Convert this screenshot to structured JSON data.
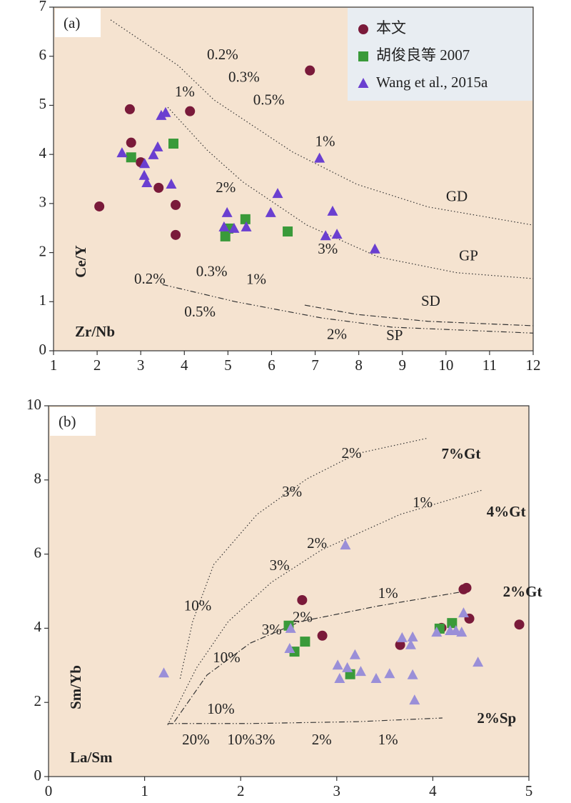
{
  "chart_data": [
    {
      "type": "scatter",
      "panel": "(a)",
      "xlabel": "Zr/Nb",
      "ylabel": "Ce/Y",
      "xlim": [
        1,
        12
      ],
      "ylim": [
        0,
        7
      ],
      "xticks": [
        1,
        2,
        3,
        4,
        5,
        6,
        7,
        8,
        9,
        10,
        11,
        12
      ],
      "yticks": [
        0,
        1,
        2,
        3,
        4,
        5,
        6,
        7
      ],
      "background": "#f5e3d0",
      "legend": "top-right",
      "series": [
        {
          "name": "本文",
          "marker": "circle",
          "color": "#7a1a3a",
          "x": [
            2.05,
            2.75,
            2.78,
            3.0,
            3.41,
            3.8,
            3.8,
            4.13,
            6.88
          ],
          "values": [
            2.94,
            4.92,
            4.24,
            3.84,
            3.32,
            2.97,
            2.36,
            4.88,
            5.71
          ]
        },
        {
          "name": "胡俊良等 2007",
          "marker": "square",
          "color": "#3a9a3a",
          "x": [
            2.78,
            3.75,
            5.01,
            4.94,
            5.4,
            6.37
          ],
          "values": [
            3.94,
            4.22,
            2.49,
            2.33,
            2.68,
            2.43
          ]
        },
        {
          "name": "Wang et al., 2015a",
          "marker": "triangle",
          "color": "#6a3fd0",
          "x": [
            2.57,
            3.09,
            3.08,
            3.14,
            3.29,
            3.39,
            3.47,
            3.57,
            3.7,
            4.98,
            4.91,
            5.14,
            5.42,
            5.98,
            6.14,
            7.1,
            7.4,
            7.24,
            7.5,
            8.37
          ],
          "values": [
            4.03,
            3.81,
            3.57,
            3.42,
            3.99,
            4.15,
            4.79,
            4.85,
            3.39,
            2.81,
            2.52,
            2.49,
            2.52,
            2.81,
            3.2,
            3.92,
            2.84,
            2.34,
            2.37,
            2.07
          ]
        }
      ],
      "curves": [
        {
          "style": "dotted",
          "x": [
            2.31,
            3.86,
            4.68,
            6.48,
            7.96,
            9.59,
            12
          ],
          "y": [
            6.74,
            5.81,
            5.11,
            4.05,
            3.39,
            2.93,
            2.56
          ]
        },
        {
          "style": "dotted",
          "x": [
            3.62,
            4.52,
            5.34,
            6.81,
            8.45,
            10.25,
            12
          ],
          "y": [
            4.96,
            4.09,
            3.44,
            2.56,
            1.91,
            1.59,
            1.47
          ]
        },
        {
          "style": "dash-dot",
          "x": [
            6.76,
            7.96,
            9.59,
            12
          ],
          "y": [
            0.93,
            0.74,
            0.6,
            0.51
          ]
        },
        {
          "style": "dash-dot-dot",
          "x": [
            3.5,
            5.17,
            7.14,
            8.77,
            12
          ],
          "y": [
            1.35,
            1.0,
            0.67,
            0.48,
            0.36
          ]
        }
      ],
      "annotations": [
        {
          "text": "0.2%",
          "x": 4.52,
          "y": 6.01
        },
        {
          "text": "0.3%",
          "x": 5.01,
          "y": 5.55
        },
        {
          "text": "0.5%",
          "x": 5.58,
          "y": 5.08
        },
        {
          "text": "1%",
          "x": 3.78,
          "y": 5.25
        },
        {
          "text": "1%",
          "x": 7.0,
          "y": 4.24
        },
        {
          "text": "2%",
          "x": 4.72,
          "y": 3.3
        },
        {
          "text": "3%",
          "x": 7.06,
          "y": 2.05
        },
        {
          "text": "0.2%",
          "x": 2.85,
          "y": 1.44
        },
        {
          "text": "0.3%",
          "x": 4.27,
          "y": 1.59
        },
        {
          "text": "1%",
          "x": 5.42,
          "y": 1.43
        },
        {
          "text": "0.5%",
          "x": 4.0,
          "y": 0.77
        },
        {
          "text": "2%",
          "x": 7.27,
          "y": 0.31
        },
        {
          "text": "GD",
          "x": 10.0,
          "y": 3.12
        },
        {
          "text": "GP",
          "x": 10.3,
          "y": 1.91
        },
        {
          "text": "SD",
          "x": 9.43,
          "y": 0.99
        },
        {
          "text": "SP",
          "x": 8.63,
          "y": 0.29
        }
      ]
    },
    {
      "type": "scatter",
      "panel": "(b)",
      "xlabel": "La/Sm",
      "ylabel": "Sm/Yb",
      "xlim": [
        0,
        5
      ],
      "ylim": [
        0,
        10
      ],
      "xticks": [
        0,
        1,
        2,
        3,
        4,
        5
      ],
      "yticks": [
        0,
        2,
        4,
        6,
        8,
        10
      ],
      "background": "#f5e3d0",
      "series": [
        {
          "marker": "circle",
          "color": "#7a1a3a",
          "x": [
            2.64,
            2.85,
            3.66,
            4.09,
            4.32,
            4.35,
            4.38,
            4.9
          ],
          "values": [
            4.76,
            3.8,
            3.55,
            4.01,
            5.05,
            5.09,
            4.26,
            4.1
          ]
        },
        {
          "marker": "square",
          "color": "#3a9a3a",
          "x": [
            2.5,
            2.56,
            2.67,
            3.14,
            4.07,
            4.2
          ],
          "values": [
            4.07,
            3.37,
            3.64,
            2.76,
            3.99,
            4.14
          ]
        },
        {
          "marker": "triangle",
          "color": "#9a8fd8",
          "x": [
            1.2,
            2.52,
            2.51,
            3.01,
            3.03,
            3.19,
            3.25,
            3.11,
            3.41,
            3.55,
            3.68,
            3.77,
            3.79,
            3.79,
            3.81,
            4.04,
            4.18,
            4.24,
            4.3,
            4.32,
            4.47,
            3.09
          ],
          "values": [
            2.79,
            3.99,
            3.45,
            3.0,
            2.64,
            3.28,
            2.83,
            2.93,
            2.64,
            2.77,
            3.74,
            3.55,
            3.76,
            2.74,
            2.06,
            3.89,
            3.93,
            3.93,
            3.89,
            4.41,
            3.08,
            6.24
          ]
        }
      ],
      "curves": [
        {
          "style": "dotted",
          "x": [
            1.37,
            1.5,
            1.72,
            2.17,
            2.69,
            3.21,
            3.95
          ],
          "y": [
            2.64,
            4.18,
            5.72,
            7.07,
            8.03,
            8.71,
            9.13
          ]
        },
        {
          "style": "dotted",
          "x": [
            1.24,
            1.54,
            1.87,
            2.32,
            2.84,
            3.66,
            4.52
          ],
          "y": [
            1.39,
            2.93,
            4.18,
            5.24,
            6.11,
            7.07,
            7.73
          ]
        },
        {
          "style": "dash-dot",
          "x": [
            1.31,
            1.65,
            2.1,
            2.62,
            3.43,
            4.32
          ],
          "y": [
            1.48,
            2.74,
            3.6,
            4.18,
            4.6,
            4.99
          ]
        },
        {
          "style": "dash-dot-dot",
          "x": [
            1.24,
            2.1,
            3.21,
            4.1
          ],
          "y": [
            1.43,
            1.43,
            1.48,
            1.58
          ]
        }
      ],
      "annotations": [
        {
          "text": "2%",
          "x": 3.05,
          "y": 8.69
        },
        {
          "text": "3%",
          "x": 2.43,
          "y": 7.65
        },
        {
          "text": "1%",
          "x": 3.79,
          "y": 7.36
        },
        {
          "text": "2%",
          "x": 2.69,
          "y": 6.26
        },
        {
          "text": "3%",
          "x": 2.3,
          "y": 5.66
        },
        {
          "text": "10%",
          "x": 1.41,
          "y": 4.57
        },
        {
          "text": "1%",
          "x": 3.43,
          "y": 4.91
        },
        {
          "text": "2%",
          "x": 2.54,
          "y": 4.26
        },
        {
          "text": "3%",
          "x": 2.22,
          "y": 3.93
        },
        {
          "text": "10%",
          "x": 1.71,
          "y": 3.18
        },
        {
          "text": "10%",
          "x": 1.65,
          "y": 1.79
        },
        {
          "text": "20%",
          "x": 1.39,
          "y": 0.96
        },
        {
          "text": "10%",
          "x": 1.86,
          "y": 0.96
        },
        {
          "text": "3%",
          "x": 2.15,
          "y": 0.96
        },
        {
          "text": "2%",
          "x": 2.74,
          "y": 0.96
        },
        {
          "text": "1%",
          "x": 3.43,
          "y": 0.96
        },
        {
          "text": "7%Gt",
          "x": 4.09,
          "y": 8.67,
          "bold": true
        },
        {
          "text": "4%Gt",
          "x": 4.56,
          "y": 7.11,
          "bold": true
        },
        {
          "text": "2%Gt",
          "x": 4.73,
          "y": 4.95,
          "bold": true
        },
        {
          "text": "2%Sp",
          "x": 4.46,
          "y": 1.54,
          "bold": true
        }
      ]
    }
  ]
}
